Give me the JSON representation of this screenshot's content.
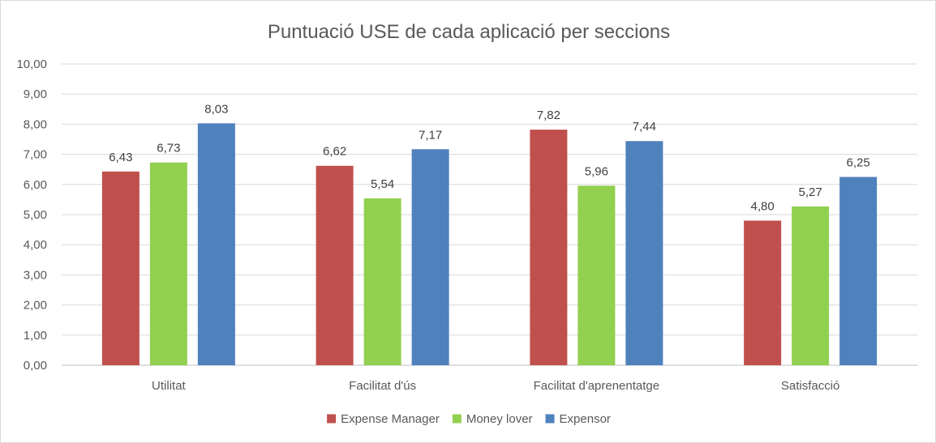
{
  "chart_data": {
    "type": "bar",
    "title": "Puntuació USE de cada aplicació per seccions",
    "categories": [
      "Utilitat",
      "Facilitat d'ús",
      "Facilitat d'aprenentatge",
      "Satisfacció"
    ],
    "series": [
      {
        "name": "Expense Manager",
        "color": "#c0504d",
        "values": [
          6.43,
          6.62,
          7.82,
          4.8
        ],
        "labels": [
          "6,43",
          "6,62",
          "7,82",
          "4,80"
        ]
      },
      {
        "name": "Money lover",
        "color": "#92d050",
        "values": [
          6.73,
          5.54,
          5.96,
          5.27
        ],
        "labels": [
          "6,73",
          "5,54",
          "5,96",
          "5,27"
        ]
      },
      {
        "name": "Expensor",
        "color": "#4f81bd",
        "values": [
          8.03,
          7.17,
          7.44,
          6.25
        ],
        "labels": [
          "8,03",
          "7,17",
          "7,44",
          "6,25"
        ]
      }
    ],
    "ylim": [
      0,
      10
    ],
    "yticks": [
      0,
      1,
      2,
      3,
      4,
      5,
      6,
      7,
      8,
      9,
      10
    ],
    "ytick_labels": [
      "0,00",
      "1,00",
      "2,00",
      "3,00",
      "4,00",
      "5,00",
      "6,00",
      "7,00",
      "8,00",
      "9,00",
      "10,00"
    ],
    "grid": true,
    "legend_position": "bottom",
    "xlabel": "",
    "ylabel": ""
  }
}
